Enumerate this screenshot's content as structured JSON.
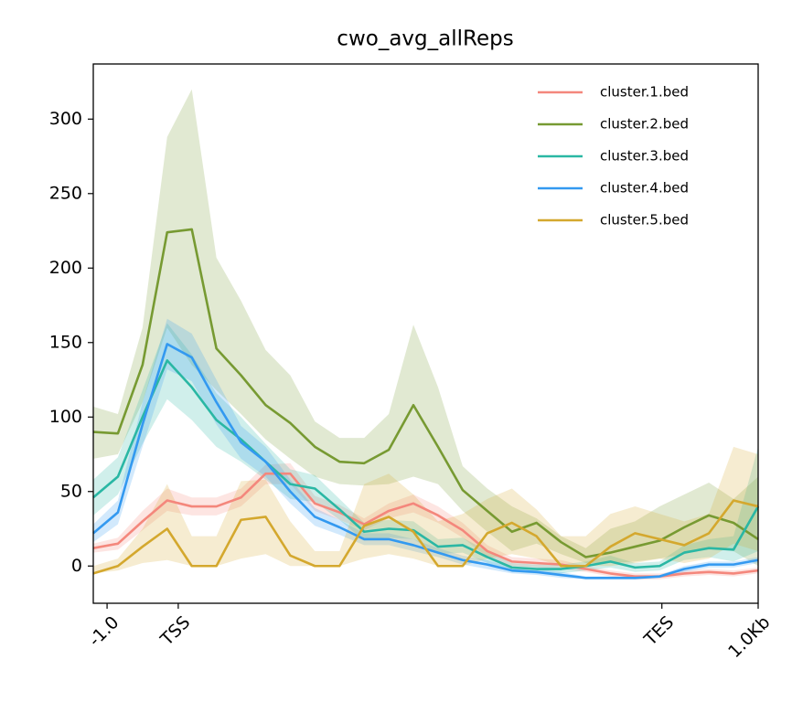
{
  "chart_data": {
    "type": "line",
    "title": "cwo_avg_allReps",
    "x": [
      0,
      1,
      2,
      3,
      4,
      5,
      6,
      7,
      8,
      9,
      10,
      11,
      12,
      13,
      14,
      15,
      16,
      17,
      18,
      19,
      20,
      21,
      22,
      23,
      24,
      25,
      26,
      27
    ],
    "xlim": [
      0,
      27
    ],
    "xticks": [
      {
        "value": 0.56,
        "label": "-1.0"
      },
      {
        "value": 3.45,
        "label": "TSS"
      },
      {
        "value": 23.09,
        "label": "TES"
      },
      {
        "value": 27,
        "label": "1.0Kb"
      }
    ],
    "ylim": [
      -25,
      337
    ],
    "yticks": [
      0,
      50,
      100,
      150,
      200,
      250,
      300
    ],
    "legend_position": "upper right",
    "series": [
      {
        "name": "cluster.1.bed",
        "color": "#f4877c",
        "values": [
          12,
          15,
          30,
          44,
          40,
          40,
          46,
          62,
          62,
          42,
          36,
          28,
          37,
          42,
          34,
          24,
          10,
          3,
          2,
          1,
          -2,
          -5,
          -7,
          -7,
          -5,
          -4,
          -5,
          -3
        ],
        "lower": [
          9,
          11,
          24,
          37,
          34,
          34,
          40,
          55,
          55,
          37,
          31,
          24,
          32,
          36,
          29,
          19,
          6,
          0,
          -1,
          -2,
          -4,
          -7,
          -9,
          -9,
          -7,
          -6,
          -7,
          -5
        ],
        "upper": [
          15,
          19,
          37,
          52,
          46,
          46,
          52,
          68,
          69,
          47,
          41,
          32,
          42,
          48,
          40,
          29,
          14,
          6,
          5,
          4,
          0,
          -3,
          -5,
          -5,
          -3,
          -2,
          -3,
          -1
        ]
      },
      {
        "name": "cluster.2.bed",
        "color": "#779a32",
        "values": [
          90,
          89,
          135,
          224,
          226,
          146,
          128,
          108,
          96,
          80,
          70,
          69,
          78,
          108,
          80,
          51,
          37,
          23,
          29,
          16,
          6,
          9,
          13,
          17,
          26,
          34,
          29,
          18
        ],
        "lower": [
          72,
          75,
          110,
          160,
          135,
          118,
          102,
          85,
          72,
          60,
          55,
          54,
          55,
          60,
          55,
          37,
          23,
          10,
          15,
          8,
          2,
          2,
          3,
          5,
          8,
          12,
          10,
          0
        ],
        "upper": [
          107,
          102,
          160,
          288,
          320,
          207,
          178,
          145,
          128,
          97,
          86,
          86,
          102,
          162,
          120,
          67,
          52,
          40,
          32,
          20,
          12,
          25,
          30,
          40,
          48,
          56,
          45,
          60
        ]
      },
      {
        "name": "cluster.3.bed",
        "color": "#2ab7a4",
        "values": [
          46,
          60,
          100,
          138,
          120,
          98,
          85,
          70,
          55,
          52,
          38,
          23,
          25,
          24,
          13,
          14,
          6,
          -1,
          -2,
          -2,
          0,
          3,
          -1,
          0,
          9,
          12,
          11,
          40
        ],
        "lower": [
          34,
          48,
          82,
          112,
          98,
          80,
          70,
          58,
          45,
          43,
          31,
          17,
          19,
          18,
          8,
          9,
          2,
          -4,
          -5,
          -5,
          -3,
          -1,
          -4,
          -3,
          4,
          6,
          3,
          10
        ],
        "upper": [
          58,
          73,
          118,
          163,
          142,
          116,
          100,
          82,
          65,
          61,
          45,
          29,
          31,
          30,
          18,
          19,
          10,
          2,
          1,
          1,
          3,
          7,
          2,
          3,
          14,
          18,
          20,
          80
        ]
      },
      {
        "name": "cluster.4.bed",
        "color": "#3399f0",
        "values": [
          22,
          36,
          95,
          149,
          140,
          110,
          83,
          70,
          50,
          33,
          26,
          18,
          18,
          14,
          9,
          4,
          1,
          -3,
          -4,
          -6,
          -8,
          -8,
          -8,
          -7,
          -2,
          1,
          1,
          4
        ],
        "lower": [
          16,
          28,
          80,
          132,
          124,
          95,
          72,
          60,
          42,
          27,
          21,
          14,
          14,
          10,
          6,
          1,
          -2,
          -5,
          -6,
          -8,
          -9,
          -9,
          -9,
          -8,
          -4,
          -1,
          -1,
          2
        ],
        "upper": [
          28,
          44,
          110,
          166,
          156,
          125,
          94,
          80,
          58,
          39,
          31,
          22,
          22,
          18,
          12,
          7,
          4,
          -1,
          -2,
          -4,
          -7,
          -7,
          -7,
          -6,
          0,
          3,
          3,
          6
        ]
      },
      {
        "name": "cluster.5.bed",
        "color": "#d4a82e",
        "values": [
          -5,
          0,
          13,
          25,
          0,
          0,
          31,
          33,
          7,
          0,
          0,
          27,
          33,
          23,
          0,
          0,
          22,
          29,
          20,
          0,
          0,
          13,
          22,
          18,
          14,
          22,
          44,
          40
        ],
        "lower": [
          -5,
          -3,
          2,
          4,
          0,
          0,
          5,
          8,
          0,
          0,
          0,
          5,
          8,
          5,
          0,
          0,
          5,
          8,
          5,
          0,
          0,
          0,
          2,
          5,
          2,
          5,
          15,
          10
        ],
        "upper": [
          0,
          5,
          25,
          55,
          20,
          20,
          57,
          58,
          30,
          10,
          10,
          55,
          62,
          48,
          30,
          35,
          45,
          52,
          38,
          20,
          20,
          35,
          40,
          35,
          30,
          35,
          80,
          75
        ]
      }
    ]
  }
}
